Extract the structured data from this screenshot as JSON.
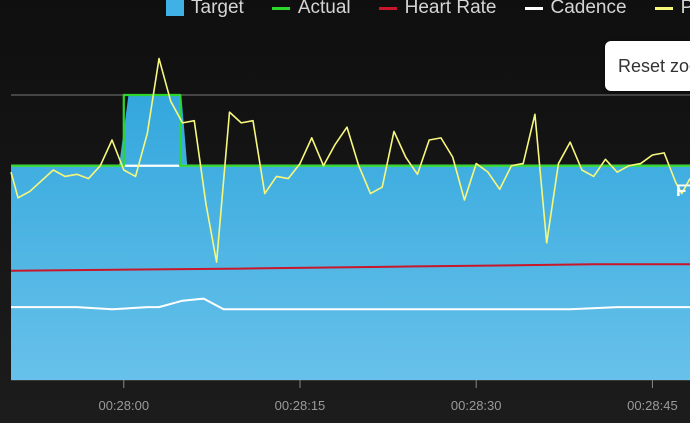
{
  "legend": {
    "target_label": "Target",
    "actual_label": "Actual",
    "heart_rate_label": "Heart Rate",
    "cadence_label": "Cadence",
    "power_label": "P"
  },
  "reset_zoom_label": "Reset zoom",
  "ftp_marker_label": "FT",
  "colors": {
    "target": "#3fb1e5",
    "actual": "#2dd62d",
    "heart_rate": "#c8162a",
    "cadence": "#ffffff",
    "power": "#f7f77c",
    "background": "#121212"
  },
  "chart_data": {
    "type": "line",
    "x_ticks": [
      "00:28:00",
      "00:28:15",
      "00:28:30",
      "00:28:45"
    ],
    "x_tick_seconds": [
      0,
      15,
      30,
      45
    ],
    "xlim": [
      -9.6,
      48.2
    ],
    "ylim": [
      0,
      168
    ],
    "gridlines": [
      100,
      133
    ],
    "ftp": 100,
    "series": [
      {
        "name": "Target",
        "kind": "area",
        "x": [
          -9.6,
          -0.4,
          0.4,
          1.2,
          4.9,
          5.4,
          48.2
        ],
        "y": [
          100,
          100,
          133,
          133,
          133,
          100,
          100
        ]
      },
      {
        "name": "Actual",
        "kind": "step",
        "x": [
          -9.6,
          0.0,
          0.0,
          2.4,
          4.8,
          4.8,
          48.2
        ],
        "y": [
          100,
          100,
          133,
          133,
          133,
          100,
          100
        ]
      },
      {
        "name": "Heart Rate",
        "kind": "line",
        "x": [
          -9.6,
          10,
          25,
          40,
          48.2
        ],
        "y": [
          51,
          52,
          53,
          54,
          54
        ]
      },
      {
        "name": "Cadence",
        "kind": "line",
        "x": [
          -9.6,
          -7,
          -4,
          -1,
          2,
          3,
          5,
          6.8,
          8.5,
          12,
          16,
          20,
          25,
          30,
          34,
          38,
          42,
          46,
          48.2
        ],
        "y": [
          34,
          34,
          34,
          33,
          34,
          34,
          37,
          38,
          33,
          33,
          33,
          33,
          33,
          33,
          33,
          33,
          34,
          34,
          34
        ]
      },
      {
        "name": "Power",
        "kind": "line",
        "x": [
          -9.6,
          -9,
          -8,
          -6,
          -5,
          -4,
          -3,
          -2,
          -1,
          0,
          1,
          2,
          3,
          4,
          5,
          6,
          7,
          7.9,
          9,
          10,
          11,
          12,
          13,
          14,
          15,
          16,
          17,
          18,
          19,
          20,
          21,
          22,
          23,
          24,
          25,
          26,
          27,
          28,
          29,
          30,
          31,
          32,
          33,
          34,
          35,
          36,
          37,
          38,
          39,
          40,
          41,
          42,
          43,
          44,
          45,
          46,
          47,
          47.5,
          48.2
        ],
        "y": [
          97,
          85,
          88,
          98,
          95,
          96,
          94,
          100,
          112,
          98,
          95,
          115,
          150,
          130,
          120,
          121,
          82,
          55,
          125,
          120,
          121,
          87,
          95,
          94,
          101,
          113,
          100,
          110,
          118,
          100,
          87,
          90,
          116,
          104,
          96,
          112,
          113,
          104,
          84,
          101,
          97,
          89,
          100,
          101,
          124,
          64,
          101,
          111,
          98,
          95,
          103,
          97,
          100,
          101,
          105,
          106,
          92,
          87,
          94
        ]
      }
    ]
  }
}
